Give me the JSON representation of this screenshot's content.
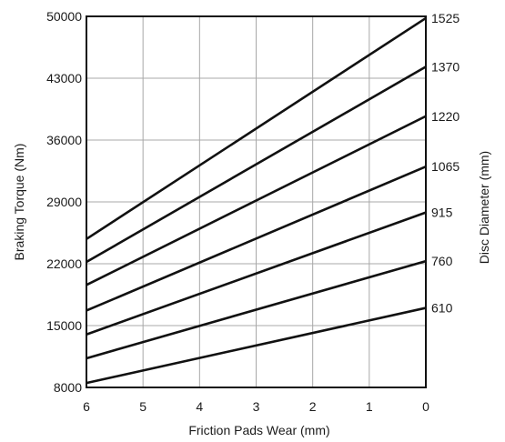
{
  "chart_data": {
    "type": "line",
    "xlabel": "Friction Pads Wear (mm)",
    "ylabel": "Braking Torque (Nm)",
    "y2label": "Disc Diameter (mm)",
    "x_ticks": [
      "6",
      "5",
      "4",
      "3",
      "2",
      "1",
      "0"
    ],
    "x_reversed": true,
    "xlim": [
      6,
      0
    ],
    "ylim": [
      8000,
      50000
    ],
    "y_ticks": [
      "8000",
      "15000",
      "22000",
      "29000",
      "36000",
      "43000",
      "50000"
    ],
    "grid": true,
    "series": [
      {
        "name": "610",
        "x": [
          6,
          0
        ],
        "y": [
          8500,
          17000
        ]
      },
      {
        "name": "760",
        "x": [
          6,
          0
        ],
        "y": [
          11300,
          22300
        ]
      },
      {
        "name": "915",
        "x": [
          6,
          0
        ],
        "y": [
          14000,
          27800
        ]
      },
      {
        "name": "1065",
        "x": [
          6,
          0
        ],
        "y": [
          16700,
          33000
        ]
      },
      {
        "name": "1220",
        "x": [
          6,
          0
        ],
        "y": [
          19600,
          38700
        ]
      },
      {
        "name": "1370",
        "x": [
          6,
          0
        ],
        "y": [
          22200,
          44300
        ]
      },
      {
        "name": "1525",
        "x": [
          6,
          0
        ],
        "y": [
          24800,
          49800
        ]
      }
    ]
  }
}
